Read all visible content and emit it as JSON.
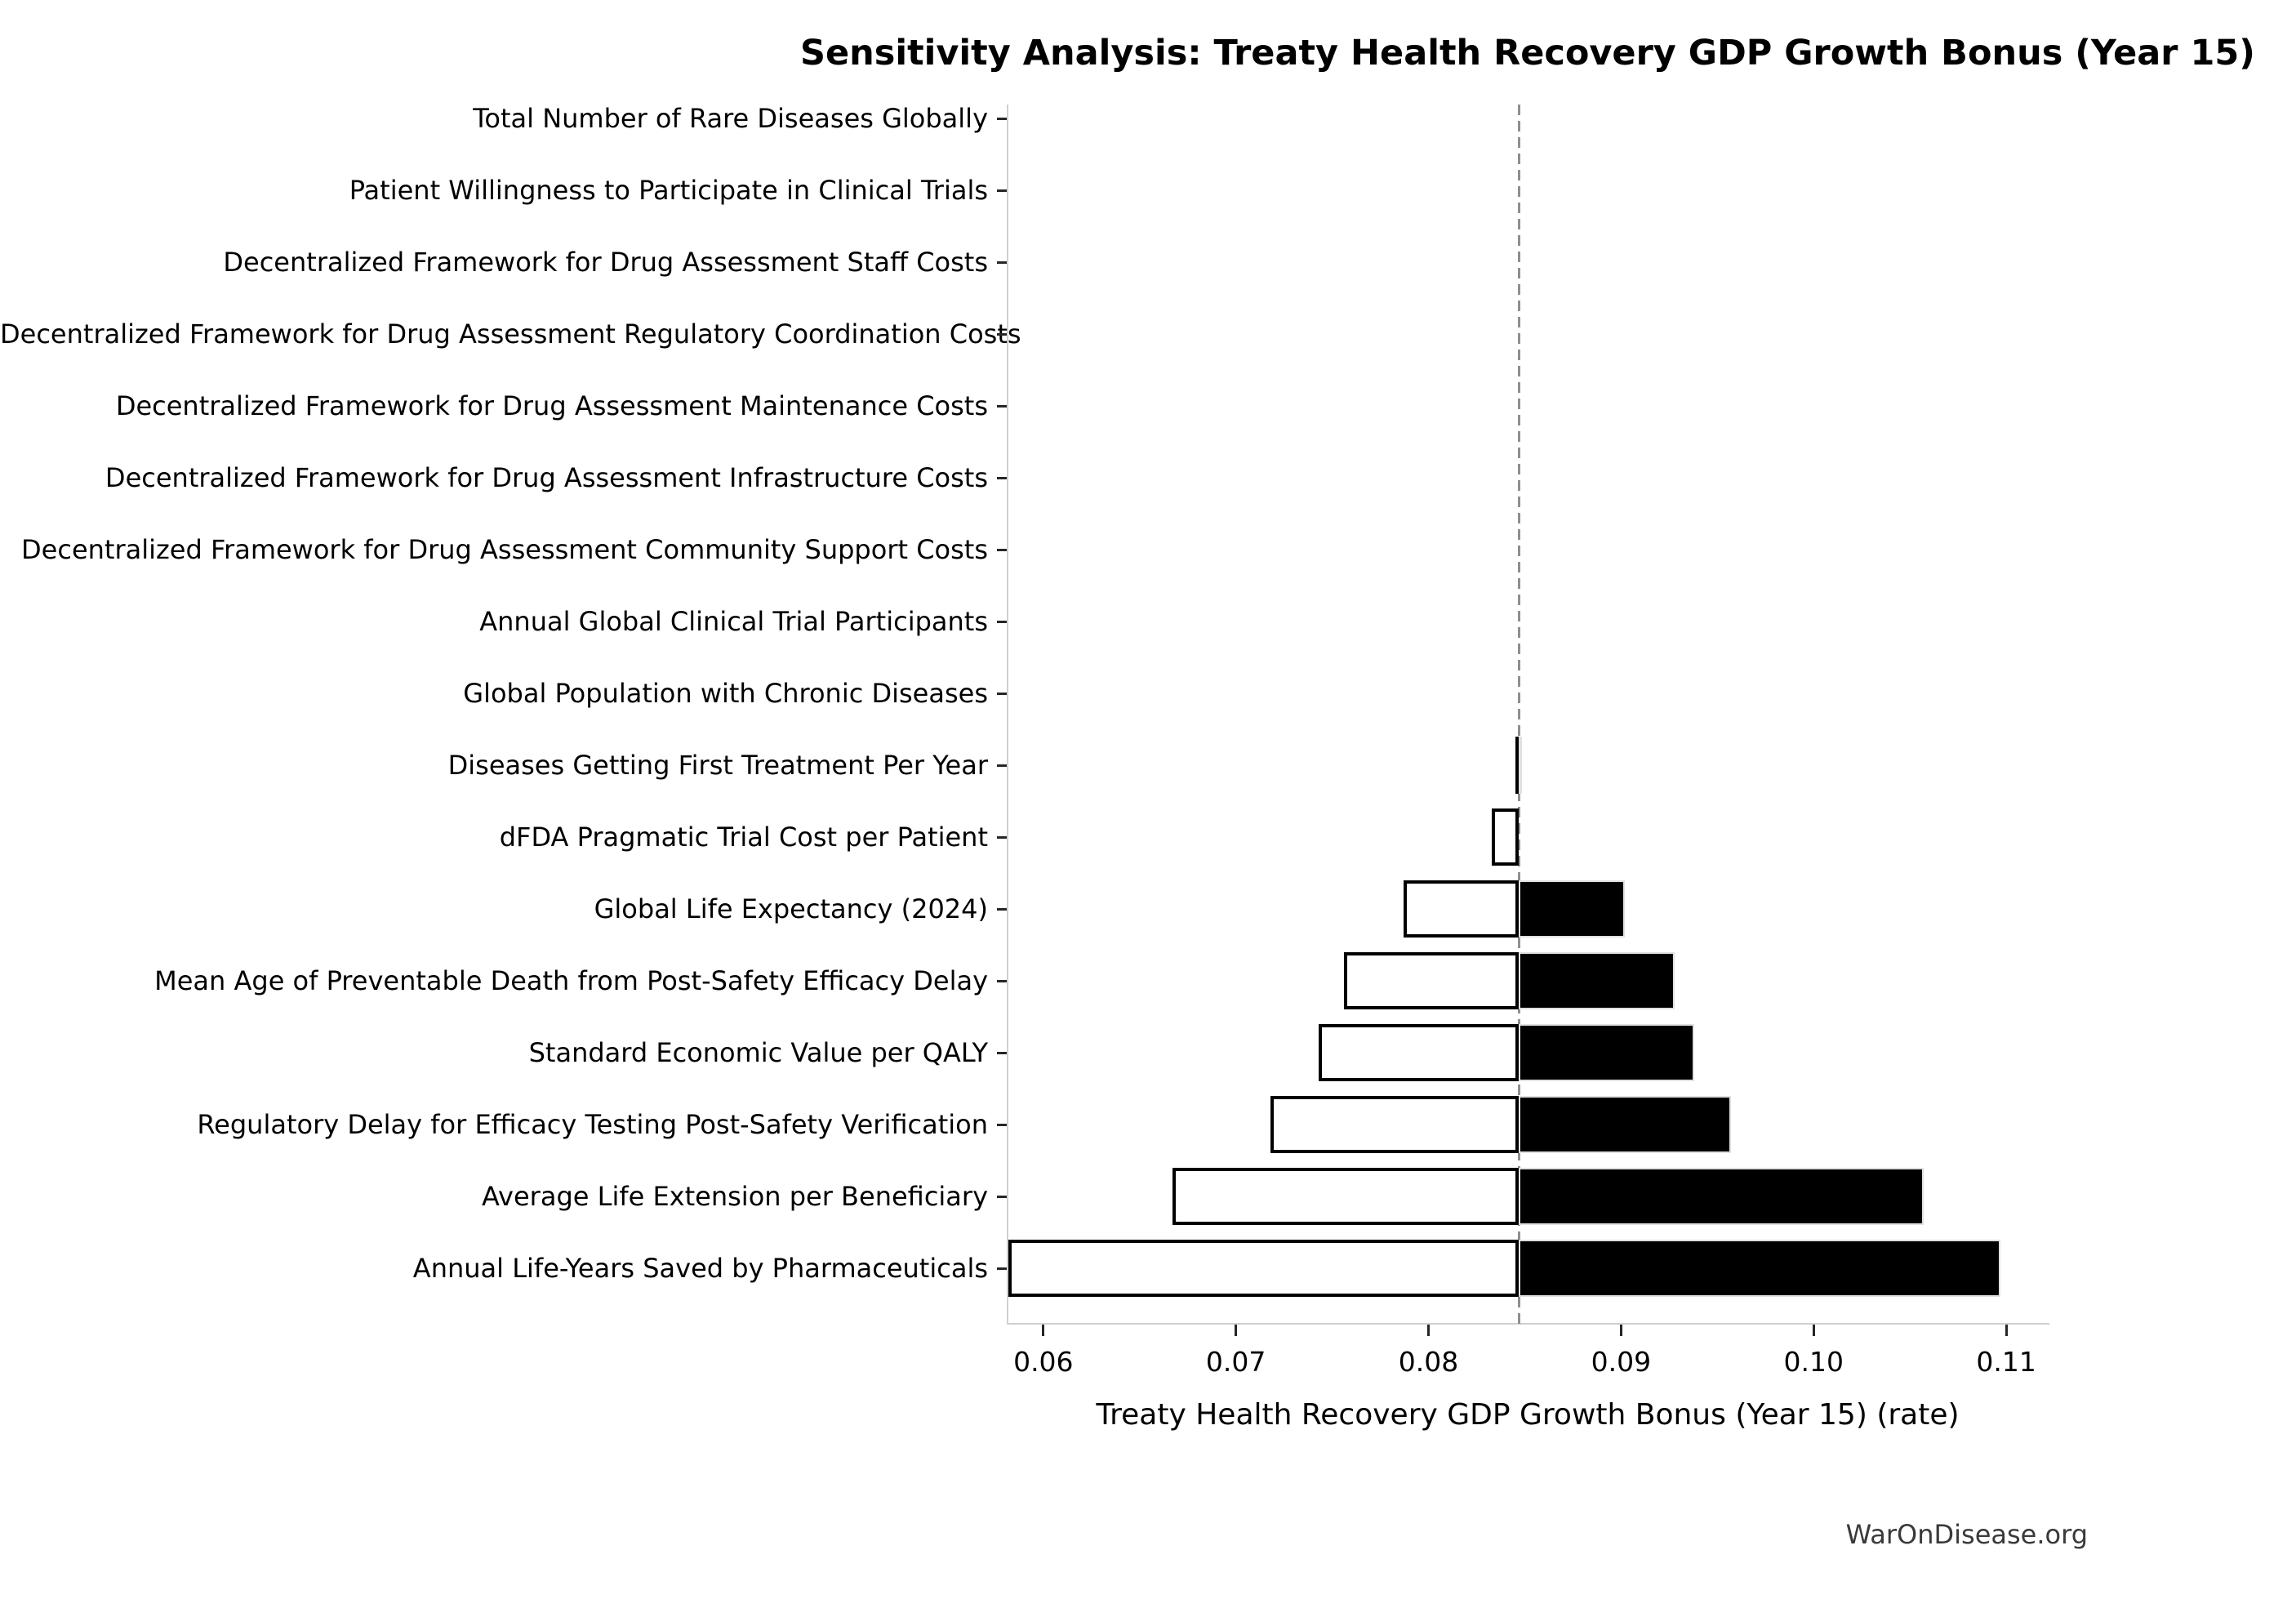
{
  "chart_data": {
    "type": "bar",
    "variant": "tornado-sensitivity",
    "orientation": "horizontal",
    "title": "Sensitivity Analysis: Treaty Health Recovery GDP Growth Bonus (Year 15)",
    "xlabel": "Treaty Health Recovery GDP Growth Bonus (Year 15) (rate)",
    "ylabel": "",
    "watermark": "WarOnDisease.org",
    "grid": false,
    "legend": null,
    "baseline": 0.0847,
    "xlim": [
      0.0581,
      0.1122
    ],
    "xticks": [
      {
        "value": 0.06,
        "label": "0.06"
      },
      {
        "value": 0.07,
        "label": "0.07"
      },
      {
        "value": 0.08,
        "label": "0.08"
      },
      {
        "value": 0.09,
        "label": "0.09"
      },
      {
        "value": 0.1,
        "label": "0.10"
      },
      {
        "value": 0.11,
        "label": "0.11"
      }
    ],
    "parameters": [
      {
        "label": "Total Number of Rare Diseases Globally",
        "low": 0.0847,
        "high": 0.0847
      },
      {
        "label": "Patient Willingness to Participate in Clinical Trials",
        "low": 0.0847,
        "high": 0.0847
      },
      {
        "label": "Decentralized Framework for Drug Assessment Staff Costs",
        "low": 0.0847,
        "high": 0.0847
      },
      {
        "label": "Decentralized Framework for Drug Assessment Regulatory Coordination Costs",
        "low": 0.0847,
        "high": 0.0847
      },
      {
        "label": "Decentralized Framework for Drug Assessment Maintenance Costs",
        "low": 0.0847,
        "high": 0.0847
      },
      {
        "label": "Decentralized Framework for Drug Assessment Infrastructure Costs",
        "low": 0.0847,
        "high": 0.0847
      },
      {
        "label": "Decentralized Framework for Drug Assessment Community Support Costs",
        "low": 0.0847,
        "high": 0.0847
      },
      {
        "label": "Annual Global Clinical Trial Participants",
        "low": 0.0847,
        "high": 0.0847
      },
      {
        "label": "Global Population with Chronic Diseases",
        "low": 0.0847,
        "high": 0.0847
      },
      {
        "label": "Diseases Getting First Treatment Per Year",
        "low": 0.0845,
        "high": 0.0848
      },
      {
        "label": "dFDA Pragmatic Trial Cost per Patient",
        "low": 0.0833,
        "high": 0.0847
      },
      {
        "label": "Global Life Expectancy (2024)",
        "low": 0.0787,
        "high": 0.0902
      },
      {
        "label": "Mean Age of Preventable Death from Post-Safety Efficacy Delay",
        "low": 0.0756,
        "high": 0.0928
      },
      {
        "label": "Standard Economic Value per QALY",
        "low": 0.0743,
        "high": 0.0938
      },
      {
        "label": "Regulatory Delay for Efficacy Testing Post-Safety Verification",
        "low": 0.0718,
        "high": 0.0957
      },
      {
        "label": "Average Life Extension per Beneficiary",
        "low": 0.0667,
        "high": 0.1057
      },
      {
        "label": "Annual Life-Years Saved by Pharmaceuticals",
        "low": 0.0582,
        "high": 0.1097
      }
    ],
    "colors": {
      "low_fill": "#ffffff",
      "high_fill": "#000000",
      "bar_edge": "#000000",
      "baseline_line": "#8f8f8f",
      "spine": "#d0d0d0",
      "tick": "#262626",
      "text": "#000000",
      "watermark_text": "#3a3a3a"
    }
  }
}
